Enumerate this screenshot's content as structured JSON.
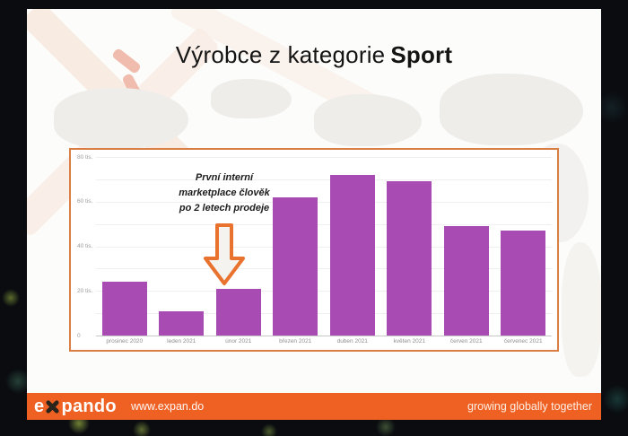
{
  "slide": {
    "title": {
      "regular": "Výrobce z kategorie",
      "bold": "Sport"
    },
    "annotation_lines": [
      "První interní",
      "marketplace člověk",
      "po 2 letech prodeje"
    ]
  },
  "chart_data": {
    "type": "bar",
    "title": "",
    "categories": [
      "prosinec 2020",
      "leden 2021",
      "únor 2021",
      "březen 2021",
      "duben 2021",
      "květen 2021",
      "červen 2021",
      "červenec 2021"
    ],
    "values": [
      24,
      11,
      21,
      62,
      72,
      69,
      49,
      47
    ],
    "value_unit": "tis.",
    "ylim": [
      0,
      80
    ],
    "y_ticks": [
      0,
      10,
      20,
      30,
      40,
      50,
      60,
      70,
      80
    ],
    "y_tick_labels": {
      "0": "0",
      "20": "20 tis.",
      "40": "40 tis.",
      "60": "60 tis.",
      "80": "80 tis."
    },
    "grid": true,
    "legend": false,
    "bar_color": "#a84cb4",
    "annotation": {
      "text": "První interní marketplace člověk po 2 letech prodeje",
      "points_to_category": "únor 2021"
    }
  },
  "footer": {
    "logo_prefix": "e",
    "logo_suffix": "pando",
    "url": "www.expan.do",
    "tagline": "growing globally together"
  },
  "colors": {
    "footer_orange": "#ef6123",
    "chart_border": "#d97f45",
    "bar_purple": "#a84cb4",
    "arrow_orange": "#e8722e"
  }
}
